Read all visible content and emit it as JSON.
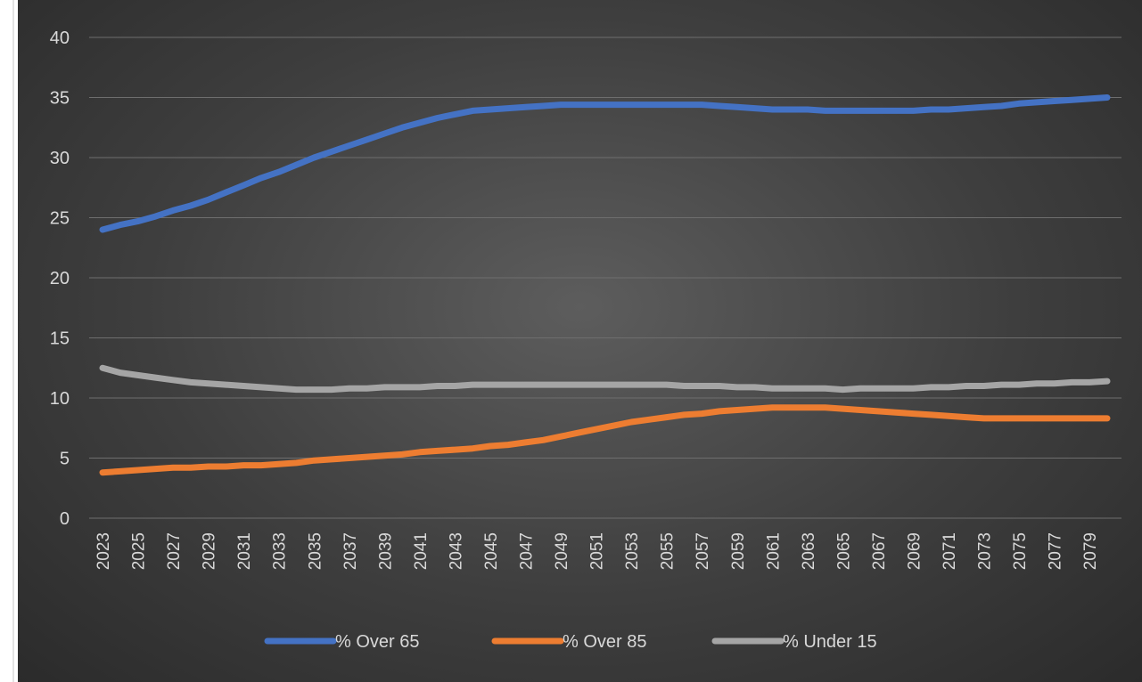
{
  "chart_data": {
    "type": "line",
    "title": "",
    "xlabel": "",
    "ylabel": "",
    "ylim": [
      0,
      40
    ],
    "yticks": [
      "0",
      "5",
      "10",
      "15",
      "20",
      "25",
      "30",
      "35",
      "40"
    ],
    "x": [
      2023,
      2024,
      2025,
      2026,
      2027,
      2028,
      2029,
      2030,
      2031,
      2032,
      2033,
      2034,
      2035,
      2036,
      2037,
      2038,
      2039,
      2040,
      2041,
      2042,
      2043,
      2044,
      2045,
      2046,
      2047,
      2048,
      2049,
      2050,
      2051,
      2052,
      2053,
      2054,
      2055,
      2056,
      2057,
      2058,
      2059,
      2060,
      2061,
      2062,
      2063,
      2064,
      2065,
      2066,
      2067,
      2068,
      2069,
      2070,
      2071,
      2072,
      2073,
      2074,
      2075,
      2076,
      2077,
      2078,
      2079,
      2080
    ],
    "xtick_labels": [
      "2023",
      "2025",
      "2027",
      "2029",
      "2031",
      "2033",
      "2035",
      "2037",
      "2039",
      "2041",
      "2043",
      "2045",
      "2047",
      "2049",
      "2051",
      "2053",
      "2055",
      "2057",
      "2059",
      "2061",
      "2063",
      "2065",
      "2067",
      "2069",
      "2071",
      "2073",
      "2075",
      "2077",
      "2079"
    ],
    "grid": true,
    "legend_position": "bottom",
    "series": [
      {
        "name": "% Over 65",
        "color": "#4472c4",
        "values": [
          24.0,
          24.4,
          24.7,
          25.1,
          25.6,
          26.0,
          26.5,
          27.1,
          27.7,
          28.3,
          28.8,
          29.4,
          30.0,
          30.5,
          31.0,
          31.5,
          32.0,
          32.5,
          32.9,
          33.3,
          33.6,
          33.9,
          34.0,
          34.1,
          34.2,
          34.3,
          34.4,
          34.4,
          34.4,
          34.4,
          34.4,
          34.4,
          34.4,
          34.4,
          34.4,
          34.3,
          34.2,
          34.1,
          34.0,
          34.0,
          34.0,
          33.9,
          33.9,
          33.9,
          33.9,
          33.9,
          33.9,
          34.0,
          34.0,
          34.1,
          34.2,
          34.3,
          34.5,
          34.6,
          34.7,
          34.8,
          34.9,
          35.0
        ]
      },
      {
        "name": "% Over 85",
        "color": "#ed7d31",
        "values": [
          3.8,
          3.9,
          4.0,
          4.1,
          4.2,
          4.2,
          4.3,
          4.3,
          4.4,
          4.4,
          4.5,
          4.6,
          4.8,
          4.9,
          5.0,
          5.1,
          5.2,
          5.3,
          5.5,
          5.6,
          5.7,
          5.8,
          6.0,
          6.1,
          6.3,
          6.5,
          6.8,
          7.1,
          7.4,
          7.7,
          8.0,
          8.2,
          8.4,
          8.6,
          8.7,
          8.9,
          9.0,
          9.1,
          9.2,
          9.2,
          9.2,
          9.2,
          9.1,
          9.0,
          8.9,
          8.8,
          8.7,
          8.6,
          8.5,
          8.4,
          8.3,
          8.3,
          8.3,
          8.3,
          8.3,
          8.3,
          8.3,
          8.3
        ]
      },
      {
        "name": "% Under 15",
        "color": "#a5a5a5",
        "values": [
          12.5,
          12.1,
          11.9,
          11.7,
          11.5,
          11.3,
          11.2,
          11.1,
          11.0,
          10.9,
          10.8,
          10.7,
          10.7,
          10.7,
          10.8,
          10.8,
          10.9,
          10.9,
          10.9,
          11.0,
          11.0,
          11.1,
          11.1,
          11.1,
          11.1,
          11.1,
          11.1,
          11.1,
          11.1,
          11.1,
          11.1,
          11.1,
          11.1,
          11.0,
          11.0,
          11.0,
          10.9,
          10.9,
          10.8,
          10.8,
          10.8,
          10.8,
          10.7,
          10.8,
          10.8,
          10.8,
          10.8,
          10.9,
          10.9,
          11.0,
          11.0,
          11.1,
          11.1,
          11.2,
          11.2,
          11.3,
          11.3,
          11.4
        ]
      }
    ]
  }
}
